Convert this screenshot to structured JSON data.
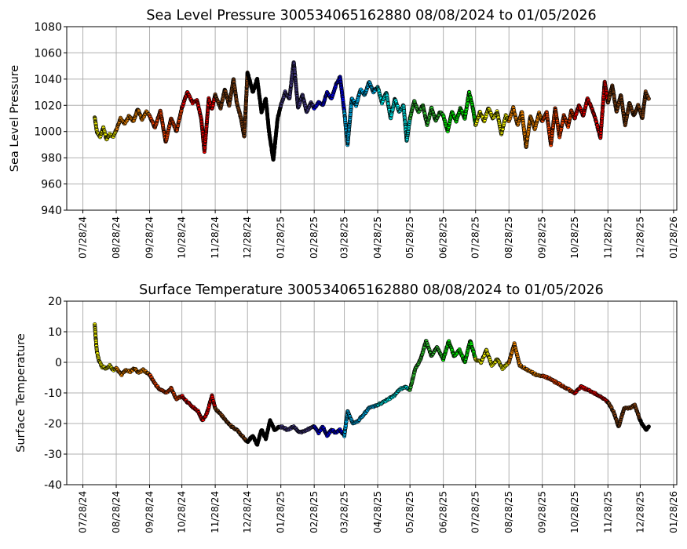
{
  "chart_data": [
    {
      "type": "scatter",
      "title": "Sea Level Pressure 300534065162880  08/08/2024 to 01/05/2026",
      "xlabel": "",
      "ylabel": "Sea Level Pressure",
      "ylim": [
        940,
        1080
      ],
      "yticks": [
        940,
        960,
        980,
        1000,
        1020,
        1040,
        1060,
        1080
      ],
      "xlim": [
        "07/13/2024",
        "01/31/2026"
      ],
      "xticks": [
        "07/28/24",
        "08/28/24",
        "09/28/24",
        "10/28/24",
        "11/28/24",
        "12/28/24",
        "01/28/25",
        "02/28/25",
        "03/28/25",
        "04/28/25",
        "05/28/25",
        "06/28/25",
        "07/28/25",
        "08/28/25",
        "09/28/25",
        "10/28/25",
        "11/28/25",
        "12/28/25",
        "01/28/26"
      ],
      "grid": true,
      "markers": "small circles colored by time period, black outline",
      "series": [
        {
          "color": "#ffff00",
          "x": [
            "08/08/24",
            "08/10/24",
            "08/13/24",
            "08/16/24",
            "08/19/24",
            "08/22/24",
            "08/25/24",
            "08/28/24"
          ],
          "y": [
            1011,
            1000,
            996,
            1003,
            994,
            998,
            996,
            1001
          ]
        },
        {
          "color": "#ff8c00",
          "x": [
            "08/28/24",
            "09/01/24",
            "09/05/24",
            "09/09/24",
            "09/13/24",
            "09/17/24",
            "09/21/24",
            "09/25/24",
            "09/28/24"
          ],
          "y": [
            1001,
            1010,
            1006,
            1012,
            1008,
            1017,
            1009,
            1015,
            1012
          ]
        },
        {
          "color": "#ff4500",
          "x": [
            "09/28/24",
            "10/03/24",
            "10/08/24",
            "10/13/24",
            "10/18/24",
            "10/23/24",
            "10/28/24"
          ],
          "y": [
            1012,
            1003,
            1016,
            992,
            1010,
            1000,
            1018
          ]
        },
        {
          "color": "#ff0000",
          "x": [
            "10/28/24",
            "11/02/24",
            "11/07/24",
            "11/11/24",
            "11/15/24",
            "11/18/24",
            "11/22/24",
            "11/25/24",
            "11/28/24"
          ],
          "y": [
            1018,
            1030,
            1022,
            1024,
            1010,
            985,
            1025,
            1017,
            1028
          ]
        },
        {
          "color": "#8b4513",
          "x": [
            "11/28/24",
            "12/03/24",
            "12/07/24",
            "12/11/24",
            "12/15/24",
            "12/18/24",
            "12/22/24",
            "12/25/24",
            "12/28/24"
          ],
          "y": [
            1028,
            1018,
            1032,
            1020,
            1040,
            1022,
            1010,
            996,
            1045
          ]
        },
        {
          "color": "#000000",
          "x": [
            "12/28/24",
            "01/02/25",
            "01/06/25",
            "01/10/25",
            "01/14/25",
            "01/17/25",
            "01/21/25",
            "01/25/25",
            "01/28/25"
          ],
          "y": [
            1045,
            1030,
            1040,
            1015,
            1025,
            1000,
            978,
            1010,
            1020
          ]
        },
        {
          "color": "#483d8b",
          "x": [
            "01/28/25",
            "02/01/25",
            "02/05/25",
            "02/09/25",
            "02/13/25",
            "02/17/25",
            "02/21/25",
            "02/25/25",
            "02/28/25"
          ],
          "y": [
            1020,
            1030,
            1025,
            1053,
            1018,
            1028,
            1015,
            1022,
            1018
          ]
        },
        {
          "color": "#0000ff",
          "x": [
            "02/28/25",
            "03/04/25",
            "03/08/25",
            "03/12/25",
            "03/16/25",
            "03/20/25",
            "03/24/25",
            "03/28/25"
          ],
          "y": [
            1018,
            1022,
            1020,
            1030,
            1025,
            1035,
            1042,
            1015
          ]
        },
        {
          "color": "#00bfff",
          "x": [
            "03/28/25",
            "03/31/25",
            "04/04/25",
            "04/08/25",
            "04/12/25",
            "04/16/25",
            "04/20/25",
            "04/24/25",
            "04/28/25"
          ],
          "y": [
            1015,
            990,
            1025,
            1020,
            1032,
            1028,
            1038,
            1030,
            1034
          ]
        },
        {
          "color": "#00ffff",
          "x": [
            "04/28/25",
            "05/02/25",
            "05/06/25",
            "05/10/25",
            "05/14/25",
            "05/18/25",
            "05/22/25",
            "05/25/25",
            "05/28/25"
          ],
          "y": [
            1034,
            1022,
            1030,
            1010,
            1025,
            1015,
            1020,
            993,
            1010
          ]
        },
        {
          "color": "#32cd32",
          "x": [
            "05/28/25",
            "06/01/25",
            "06/05/25",
            "06/09/25",
            "06/13/25",
            "06/17/25",
            "06/21/25",
            "06/25/25",
            "06/28/25"
          ],
          "y": [
            1010,
            1023,
            1015,
            1020,
            1005,
            1018,
            1008,
            1015,
            1012
          ]
        },
        {
          "color": "#00ff00",
          "x": [
            "06/28/25",
            "07/02/25",
            "07/06/25",
            "07/10/25",
            "07/14/25",
            "07/18/25",
            "07/22/25",
            "07/25/25",
            "07/28/25"
          ],
          "y": [
            1012,
            1000,
            1015,
            1008,
            1018,
            1010,
            1030,
            1020,
            1005
          ]
        },
        {
          "color": "#ffff00",
          "x": [
            "07/28/25",
            "08/01/25",
            "08/05/25",
            "08/09/25",
            "08/13/25",
            "08/17/25",
            "08/21/25",
            "08/25/25",
            "08/28/25"
          ],
          "y": [
            1005,
            1015,
            1008,
            1018,
            1010,
            1015,
            998,
            1012,
            1008
          ]
        },
        {
          "color": "#ff8c00",
          "x": [
            "08/28/25",
            "09/01/25",
            "09/05/25",
            "09/09/25",
            "09/13/25",
            "09/17/25",
            "09/21/25",
            "09/25/25",
            "09/28/25"
          ],
          "y": [
            1008,
            1018,
            1005,
            1015,
            988,
            1012,
            1002,
            1014,
            1008
          ]
        },
        {
          "color": "#ff4500",
          "x": [
            "09/28/25",
            "10/02/25",
            "10/06/25",
            "10/10/25",
            "10/14/25",
            "10/18/25",
            "10/22/25",
            "10/25/25",
            "10/28/25"
          ],
          "y": [
            1008,
            1015,
            990,
            1018,
            996,
            1012,
            1004,
            1016,
            1010
          ]
        },
        {
          "color": "#ff0000",
          "x": [
            "10/28/25",
            "11/01/25",
            "11/05/25",
            "11/09/25",
            "11/13/25",
            "11/17/25",
            "11/21/25",
            "11/25/25",
            "11/28/25"
          ],
          "y": [
            1010,
            1020,
            1012,
            1025,
            1018,
            1008,
            995,
            1038,
            1022
          ]
        },
        {
          "color": "#8b4513",
          "x": [
            "11/28/25",
            "12/02/25",
            "12/06/25",
            "12/10/25",
            "12/14/25",
            "12/18/25",
            "12/22/25",
            "12/26/25",
            "12/30/25",
            "01/02/26",
            "01/05/26"
          ],
          "y": [
            1022,
            1035,
            1015,
            1028,
            1005,
            1022,
            1012,
            1020,
            1010,
            1030,
            1025
          ]
        }
      ]
    },
    {
      "type": "scatter",
      "title": "Surface Temperature 300534065162880  08/08/2024 to 01/05/2026",
      "xlabel": "",
      "ylabel": "Surface Temperature",
      "ylim": [
        -40,
        20
      ],
      "yticks": [
        -40,
        -30,
        -20,
        -10,
        0,
        10,
        20
      ],
      "xlim": [
        "07/13/2024",
        "01/31/2026"
      ],
      "xticks": [
        "07/28/24",
        "08/28/24",
        "09/28/24",
        "10/28/24",
        "11/28/24",
        "12/28/24",
        "01/28/25",
        "02/28/25",
        "03/28/25",
        "04/28/25",
        "05/28/25",
        "06/28/25",
        "07/28/25",
        "08/28/25",
        "09/28/25",
        "10/28/25",
        "11/28/25",
        "12/28/25",
        "01/28/26"
      ],
      "grid": true,
      "markers": "small circles colored by time period, black outline",
      "series": [
        {
          "color": "#ffff00",
          "x": [
            "08/08/24",
            "08/09/24",
            "08/10/24",
            "08/12/24",
            "08/15/24",
            "08/19/24",
            "08/22/24",
            "08/25/24",
            "08/28/24"
          ],
          "y": [
            12.5,
            7.5,
            3.5,
            0.5,
            -1.5,
            -2,
            -1,
            -2.5,
            -2
          ]
        },
        {
          "color": "#ff8c00",
          "x": [
            "08/28/24",
            "09/02/24",
            "09/06/24",
            "09/10/24",
            "09/14/24",
            "09/18/24",
            "09/22/24",
            "09/28/24"
          ],
          "y": [
            -2,
            -4,
            -2.5,
            -3,
            -2,
            -3.5,
            -2.5,
            -4
          ]
        },
        {
          "color": "#ff4500",
          "x": [
            "09/28/24",
            "10/03/24",
            "10/08/24",
            "10/13/24",
            "10/18/24",
            "10/23/24",
            "10/28/24"
          ],
          "y": [
            -4,
            -7,
            -9,
            -10,
            -8.5,
            -12,
            -11
          ]
        },
        {
          "color": "#ff0000",
          "x": [
            "10/28/24",
            "11/02/24",
            "11/07/24",
            "11/12/24",
            "11/16/24",
            "11/20/24",
            "11/25/24",
            "11/28/24"
          ],
          "y": [
            -11,
            -13,
            -14.5,
            -16,
            -19,
            -17,
            -11,
            -15
          ]
        },
        {
          "color": "#8b4513",
          "x": [
            "11/28/24",
            "12/03/24",
            "12/08/24",
            "12/13/24",
            "12/18/24",
            "12/23/24",
            "12/28/24"
          ],
          "y": [
            -15,
            -17,
            -19,
            -21,
            -22,
            -24,
            -26
          ]
        },
        {
          "color": "#000000",
          "x": [
            "12/28/24",
            "01/02/25",
            "01/06/25",
            "01/10/25",
            "01/14/25",
            "01/18/25",
            "01/22/25",
            "01/28/25"
          ],
          "y": [
            -26,
            -24,
            -27,
            -22,
            -25,
            -19,
            -22,
            -21
          ]
        },
        {
          "color": "#483d8b",
          "x": [
            "01/28/25",
            "02/03/25",
            "02/09/25",
            "02/15/25",
            "02/21/25",
            "02/28/25"
          ],
          "y": [
            -21,
            -22,
            -21,
            -23,
            -22,
            -21
          ]
        },
        {
          "color": "#0000ff",
          "x": [
            "02/28/25",
            "03/04/25",
            "03/08/25",
            "03/12/25",
            "03/16/25",
            "03/20/25",
            "03/24/25",
            "03/28/25"
          ],
          "y": [
            -21,
            -23,
            -21,
            -24,
            -22,
            -23,
            -22,
            -24
          ]
        },
        {
          "color": "#00bfff",
          "x": [
            "03/28/25",
            "03/31/25",
            "04/05/25",
            "04/10/25",
            "04/15/25",
            "04/20/25",
            "04/28/25"
          ],
          "y": [
            -24,
            -16,
            -20,
            -19,
            -17,
            -15,
            -14
          ]
        },
        {
          "color": "#00ffff",
          "x": [
            "04/28/25",
            "05/03/25",
            "05/08/25",
            "05/13/25",
            "05/18/25",
            "05/23/25",
            "05/28/25"
          ],
          "y": [
            -14,
            -13,
            -12,
            -11,
            -9,
            -8,
            -9
          ]
        },
        {
          "color": "#32cd32",
          "x": [
            "05/28/25",
            "06/02/25",
            "06/07/25",
            "06/12/25",
            "06/17/25",
            "06/22/25",
            "06/28/25"
          ],
          "y": [
            -9,
            -2,
            1,
            7,
            2,
            5,
            1
          ]
        },
        {
          "color": "#00ff00",
          "x": [
            "06/28/25",
            "07/03/25",
            "07/08/25",
            "07/13/25",
            "07/18/25",
            "07/23/25",
            "07/28/25"
          ],
          "y": [
            1,
            7,
            2,
            4,
            0,
            7,
            1
          ]
        },
        {
          "color": "#ffff00",
          "x": [
            "07/28/25",
            "08/02/25",
            "08/07/25",
            "08/12/25",
            "08/17/25",
            "08/22/25",
            "08/28/25"
          ],
          "y": [
            1,
            0,
            4,
            -1,
            1,
            -2,
            0
          ]
        },
        {
          "color": "#ff8c00",
          "x": [
            "08/28/25",
            "09/02/25",
            "09/07/25",
            "09/12/25",
            "09/17/25",
            "09/22/25",
            "09/28/25"
          ],
          "y": [
            0,
            6,
            -1,
            -2,
            -3,
            -4,
            -4.5
          ]
        },
        {
          "color": "#ff4500",
          "x": [
            "09/28/25",
            "10/03/25",
            "10/08/25",
            "10/13/25",
            "10/18/25",
            "10/23/25",
            "10/28/25"
          ],
          "y": [
            -4.5,
            -5,
            -6,
            -7,
            -8,
            -9,
            -10
          ]
        },
        {
          "color": "#ff0000",
          "x": [
            "10/28/25",
            "11/03/25",
            "11/09/25",
            "11/15/25",
            "11/21/25",
            "11/28/25"
          ],
          "y": [
            -10,
            -8,
            -9,
            -10,
            -11,
            -13
          ]
        },
        {
          "color": "#8b4513",
          "x": [
            "11/28/25",
            "12/03/25",
            "12/08/25",
            "12/13/25",
            "12/18/25",
            "12/23/25",
            "12/28/25"
          ],
          "y": [
            -13,
            -16,
            -21,
            -15,
            -15,
            -14,
            -19
          ]
        },
        {
          "color": "#000000",
          "x": [
            "12/28/25",
            "12/31/25",
            "01/03/26",
            "01/05/26"
          ],
          "y": [
            -19,
            -21,
            -22,
            -21
          ]
        }
      ]
    }
  ]
}
